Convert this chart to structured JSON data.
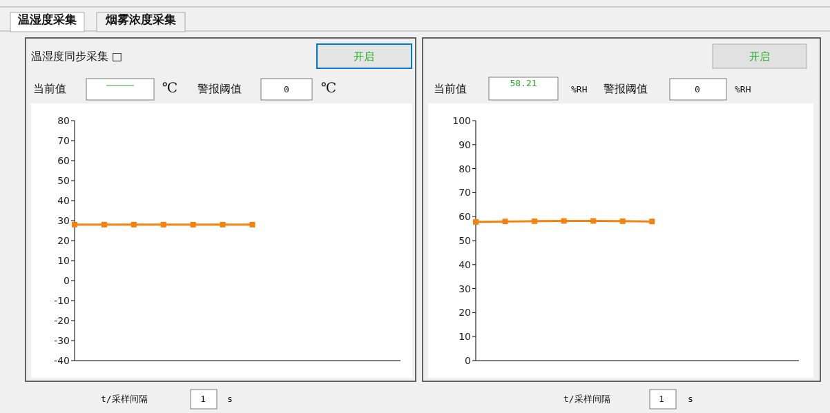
{
  "chart_data": [
    {
      "type": "line",
      "categories": [
        null,
        null,
        null,
        null,
        null,
        null,
        null,
        null,
        null,
        null,
        null,
        null
      ],
      "series": [
        {
          "color": "#f5820f",
          "values": [
            28,
            28,
            28,
            28,
            28,
            28,
            28,
            null,
            null,
            null,
            null,
            null
          ]
        }
      ],
      "ylim": [
        -40,
        80
      ],
      "yticks": [
        -40,
        -30,
        -20,
        -10,
        0,
        10,
        20,
        30,
        40,
        50,
        60,
        70,
        80
      ],
      "tick_labels": "y",
      "marker": "square",
      "line_style": "solid",
      "annotations": [
        "温湿度采集",
        "烟雾浓度采集",
        "温湿度同步采集 □",
        "开启",
        "当前值",
        "℃",
        "警报阈值",
        "0",
        "℃",
        "t/采样间隔",
        "1",
        "s"
      ]
    },
    {
      "type": "line",
      "categories": [
        null,
        null,
        null,
        null,
        null,
        null,
        null,
        null,
        null,
        null,
        null,
        null
      ],
      "series": [
        {
          "color": "#f5820f",
          "values": [
            57.8,
            58.0,
            58.1,
            58.2,
            58.2,
            58.1,
            58.0,
            null,
            null,
            null,
            null,
            null
          ]
        }
      ],
      "ylim": [
        0,
        100
      ],
      "yticks": [
        0,
        10,
        20,
        30,
        40,
        50,
        60,
        70,
        80,
        90,
        100
      ],
      "tick_labels": "y",
      "marker": "square",
      "line_style": "solid",
      "annotations": [
        "开启",
        "当前值",
        "58.21",
        "%RH",
        "警报阈值",
        "0",
        "%RH",
        "t/采样间隔",
        "1",
        "s"
      ]
    }
  ]
}
